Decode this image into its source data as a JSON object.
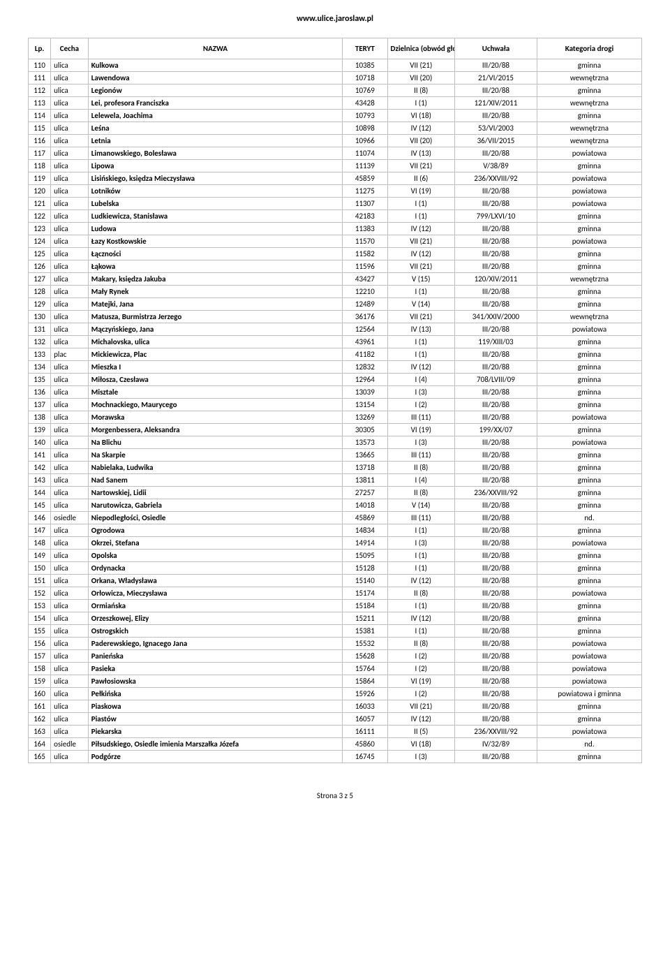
{
  "header_url": "www.ulice.jaroslaw.pl",
  "footer": "Strona 3 z 5",
  "columns": {
    "lp": "Lp.",
    "cecha": "Cecha",
    "nazwa": "NAZWA",
    "teryt": "TERYT",
    "dzielnica": "Dzielnica (obwód głosowania)",
    "uchwala": "Uchwała",
    "kategoria": "Kategoria drogi"
  },
  "rows": [
    {
      "lp": "110",
      "cecha": "ulica",
      "nazwa": "Kulkowa",
      "teryt": "10385",
      "dzielnica": "VII (21)",
      "uchwala": "III/20/88",
      "kategoria": "gminna"
    },
    {
      "lp": "111",
      "cecha": "ulica",
      "nazwa": "Lawendowa",
      "teryt": "10718",
      "dzielnica": "VII (20)",
      "uchwala": "21/VI/2015",
      "kategoria": "wewnętrzna"
    },
    {
      "lp": "112",
      "cecha": "ulica",
      "nazwa": "Legionów",
      "teryt": "10769",
      "dzielnica": "II (8)",
      "uchwala": "III/20/88",
      "kategoria": "gminna"
    },
    {
      "lp": "113",
      "cecha": "ulica",
      "nazwa": "Lei, profesora Franciszka",
      "teryt": "43428",
      "dzielnica": "I (1)",
      "uchwala": "121/XIV/2011",
      "kategoria": "wewnętrzna"
    },
    {
      "lp": "114",
      "cecha": "ulica",
      "nazwa": "Lelewela, Joachima",
      "teryt": "10793",
      "dzielnica": "VI (18)",
      "uchwala": "III/20/88",
      "kategoria": "gminna"
    },
    {
      "lp": "115",
      "cecha": "ulica",
      "nazwa": "Leśna",
      "teryt": "10898",
      "dzielnica": "IV (12)",
      "uchwala": "53/VI/2003",
      "kategoria": "wewnętrzna"
    },
    {
      "lp": "116",
      "cecha": "ulica",
      "nazwa": "Letnia",
      "teryt": "10966",
      "dzielnica": "VII (20)",
      "uchwala": "36/VII/2015",
      "kategoria": "wewnętrzna"
    },
    {
      "lp": "117",
      "cecha": "ulica",
      "nazwa": "Limanowskiego, Bolesława",
      "teryt": "11074",
      "dzielnica": "IV (13)",
      "uchwala": "III/20/88",
      "kategoria": "powiatowa"
    },
    {
      "lp": "118",
      "cecha": "ulica",
      "nazwa": "Lipowa",
      "teryt": "11139",
      "dzielnica": "VII (21)",
      "uchwala": "V/38/89",
      "kategoria": "gminna"
    },
    {
      "lp": "119",
      "cecha": "ulica",
      "nazwa": "Lisińskiego, księdza Mieczysława",
      "teryt": "45859",
      "dzielnica": "II (6)",
      "uchwala": "236/XXVIII/92",
      "kategoria": "powiatowa"
    },
    {
      "lp": "120",
      "cecha": "ulica",
      "nazwa": "Lotników",
      "teryt": "11275",
      "dzielnica": "VI (19)",
      "uchwala": "III/20/88",
      "kategoria": "powiatowa"
    },
    {
      "lp": "121",
      "cecha": "ulica",
      "nazwa": "Lubelska",
      "teryt": "11307",
      "dzielnica": "I (1)",
      "uchwala": "III/20/88",
      "kategoria": "powiatowa"
    },
    {
      "lp": "122",
      "cecha": "ulica",
      "nazwa": "Ludkiewicza, Stanisława",
      "teryt": "42183",
      "dzielnica": "I (1)",
      "uchwala": "799/LXVI/10",
      "kategoria": "gminna"
    },
    {
      "lp": "123",
      "cecha": "ulica",
      "nazwa": "Ludowa",
      "teryt": "11383",
      "dzielnica": "IV (12)",
      "uchwala": "III/20/88",
      "kategoria": "gminna"
    },
    {
      "lp": "124",
      "cecha": "ulica",
      "nazwa": "Łazy Kostkowskie",
      "teryt": "11570",
      "dzielnica": "VII (21)",
      "uchwala": "III/20/88",
      "kategoria": "powiatowa"
    },
    {
      "lp": "125",
      "cecha": "ulica",
      "nazwa": "Łączności",
      "teryt": "11582",
      "dzielnica": "IV (12)",
      "uchwala": "III/20/88",
      "kategoria": "gminna"
    },
    {
      "lp": "126",
      "cecha": "ulica",
      "nazwa": "Łąkowa",
      "teryt": "11596",
      "dzielnica": "VII (21)",
      "uchwala": "III/20/88",
      "kategoria": "gminna"
    },
    {
      "lp": "127",
      "cecha": "ulica",
      "nazwa": "Makary, księdza Jakuba",
      "teryt": "43427",
      "dzielnica": "V (15)",
      "uchwala": "120/XIV/2011",
      "kategoria": "wewnętrzna"
    },
    {
      "lp": "128",
      "cecha": "ulica",
      "nazwa": "Mały Rynek",
      "teryt": "12210",
      "dzielnica": "I (1)",
      "uchwala": "III/20/88",
      "kategoria": "gminna"
    },
    {
      "lp": "129",
      "cecha": "ulica",
      "nazwa": "Matejki, Jana",
      "teryt": "12489",
      "dzielnica": "V (14)",
      "uchwala": "III/20/88",
      "kategoria": "gminna"
    },
    {
      "lp": "130",
      "cecha": "ulica",
      "nazwa": "Matusza, Burmistrza Jerzego",
      "teryt": "36176",
      "dzielnica": "VII (21)",
      "uchwala": "341/XXIV/2000",
      "kategoria": "wewnętrzna"
    },
    {
      "lp": "131",
      "cecha": "ulica",
      "nazwa": "Mączyńskiego, Jana",
      "teryt": "12564",
      "dzielnica": "IV (13)",
      "uchwala": "III/20/88",
      "kategoria": "powiatowa"
    },
    {
      "lp": "132",
      "cecha": "ulica",
      "nazwa": "Michalovska, ulica",
      "teryt": "43961",
      "dzielnica": "I (1)",
      "uchwala": "119/XIII/03",
      "kategoria": "gminna"
    },
    {
      "lp": "133",
      "cecha": "plac",
      "nazwa": "Mickiewicza, Plac",
      "teryt": "41182",
      "dzielnica": "I (1)",
      "uchwala": "III/20/88",
      "kategoria": "gminna"
    },
    {
      "lp": "134",
      "cecha": "ulica",
      "nazwa": "Mieszka I",
      "teryt": "12832",
      "dzielnica": "IV (12)",
      "uchwala": "III/20/88",
      "kategoria": "gminna"
    },
    {
      "lp": "135",
      "cecha": "ulica",
      "nazwa": "Miłosza, Czesława",
      "teryt": "12964",
      "dzielnica": "I (4)",
      "uchwala": "708/LVIII/09",
      "kategoria": "gminna"
    },
    {
      "lp": "136",
      "cecha": "ulica",
      "nazwa": "Misztale",
      "teryt": "13039",
      "dzielnica": "I (3)",
      "uchwala": "III/20/88",
      "kategoria": "gminna"
    },
    {
      "lp": "137",
      "cecha": "ulica",
      "nazwa": "Mochnackiego, Maurycego",
      "teryt": "13154",
      "dzielnica": "I (2)",
      "uchwala": "III/20/88",
      "kategoria": "gminna"
    },
    {
      "lp": "138",
      "cecha": "ulica",
      "nazwa": "Morawska",
      "teryt": "13269",
      "dzielnica": "III (11)",
      "uchwala": "III/20/88",
      "kategoria": "powiatowa"
    },
    {
      "lp": "139",
      "cecha": "ulica",
      "nazwa": "Morgenbessera, Aleksandra",
      "teryt": "30305",
      "dzielnica": "VI (19)",
      "uchwala": "199/XX/07",
      "kategoria": "gminna"
    },
    {
      "lp": "140",
      "cecha": "ulica",
      "nazwa": "Na Blichu",
      "teryt": "13573",
      "dzielnica": "I (3)",
      "uchwala": "III/20/88",
      "kategoria": "powiatowa"
    },
    {
      "lp": "141",
      "cecha": "ulica",
      "nazwa": "Na Skarpie",
      "teryt": "13665",
      "dzielnica": "III (11)",
      "uchwala": "III/20/88",
      "kategoria": "gminna"
    },
    {
      "lp": "142",
      "cecha": "ulica",
      "nazwa": "Nabielaka, Ludwika",
      "teryt": "13718",
      "dzielnica": "II (8)",
      "uchwala": "III/20/88",
      "kategoria": "gminna"
    },
    {
      "lp": "143",
      "cecha": "ulica",
      "nazwa": "Nad Sanem",
      "teryt": "13811",
      "dzielnica": "I (4)",
      "uchwala": "III/20/88",
      "kategoria": "gminna"
    },
    {
      "lp": "144",
      "cecha": "ulica",
      "nazwa": "Nartowskiej, Lidii",
      "teryt": "27257",
      "dzielnica": "II (8)",
      "uchwala": "236/XXVIII/92",
      "kategoria": "gminna"
    },
    {
      "lp": "145",
      "cecha": "ulica",
      "nazwa": "Narutowicza, Gabriela",
      "teryt": "14018",
      "dzielnica": "V (14)",
      "uchwala": "III/20/88",
      "kategoria": "gminna"
    },
    {
      "lp": "146",
      "cecha": "osiedle",
      "nazwa": "Niepodległości, Osiedle",
      "teryt": "45869",
      "dzielnica": "III (11)",
      "uchwala": "III/20/88",
      "kategoria": "nd."
    },
    {
      "lp": "147",
      "cecha": "ulica",
      "nazwa": "Ogrodowa",
      "teryt": "14834",
      "dzielnica": "I (1)",
      "uchwala": "III/20/88",
      "kategoria": "gminna"
    },
    {
      "lp": "148",
      "cecha": "ulica",
      "nazwa": "Okrzei, Stefana",
      "teryt": "14914",
      "dzielnica": "I (3)",
      "uchwala": "III/20/88",
      "kategoria": "powiatowa"
    },
    {
      "lp": "149",
      "cecha": "ulica",
      "nazwa": "Opolska",
      "teryt": "15095",
      "dzielnica": "I (1)",
      "uchwala": "III/20/88",
      "kategoria": "gminna"
    },
    {
      "lp": "150",
      "cecha": "ulica",
      "nazwa": "Ordynacka",
      "teryt": "15128",
      "dzielnica": "I (1)",
      "uchwala": "III/20/88",
      "kategoria": "gminna"
    },
    {
      "lp": "151",
      "cecha": "ulica",
      "nazwa": "Orkana, Władysława",
      "teryt": "15140",
      "dzielnica": "IV (12)",
      "uchwala": "III/20/88",
      "kategoria": "gminna"
    },
    {
      "lp": "152",
      "cecha": "ulica",
      "nazwa": "Orłowicza, Mieczysława",
      "teryt": "15174",
      "dzielnica": "II (8)",
      "uchwala": "III/20/88",
      "kategoria": "powiatowa"
    },
    {
      "lp": "153",
      "cecha": "ulica",
      "nazwa": "Ormiańska",
      "teryt": "15184",
      "dzielnica": "I (1)",
      "uchwala": "III/20/88",
      "kategoria": "gminna"
    },
    {
      "lp": "154",
      "cecha": "ulica",
      "nazwa": "Orzeszkowej, Elizy",
      "teryt": "15211",
      "dzielnica": "IV (12)",
      "uchwala": "III/20/88",
      "kategoria": "gminna"
    },
    {
      "lp": "155",
      "cecha": "ulica",
      "nazwa": "Ostrogskich",
      "teryt": "15381",
      "dzielnica": "I (1)",
      "uchwala": "III/20/88",
      "kategoria": "gminna"
    },
    {
      "lp": "156",
      "cecha": "ulica",
      "nazwa": "Paderewskiego, Ignacego Jana",
      "teryt": "15532",
      "dzielnica": "II (8)",
      "uchwala": "III/20/88",
      "kategoria": "powiatowa"
    },
    {
      "lp": "157",
      "cecha": "ulica",
      "nazwa": "Panieńska",
      "teryt": "15628",
      "dzielnica": "I (2)",
      "uchwala": "III/20/88",
      "kategoria": "powiatowa"
    },
    {
      "lp": "158",
      "cecha": "ulica",
      "nazwa": "Pasieka",
      "teryt": "15764",
      "dzielnica": "I (2)",
      "uchwala": "III/20/88",
      "kategoria": "powiatowa"
    },
    {
      "lp": "159",
      "cecha": "ulica",
      "nazwa": "Pawłosiowska",
      "teryt": "15864",
      "dzielnica": "VI (19)",
      "uchwala": "III/20/88",
      "kategoria": "powiatowa"
    },
    {
      "lp": "160",
      "cecha": "ulica",
      "nazwa": "Pełkińska",
      "teryt": "15926",
      "dzielnica": "I (2)",
      "uchwala": "III/20/88",
      "kategoria": "powiatowa i gminna"
    },
    {
      "lp": "161",
      "cecha": "ulica",
      "nazwa": "Piaskowa",
      "teryt": "16033",
      "dzielnica": "VII (21)",
      "uchwala": "III/20/88",
      "kategoria": "gminna"
    },
    {
      "lp": "162",
      "cecha": "ulica",
      "nazwa": "Piastów",
      "teryt": "16057",
      "dzielnica": "IV (12)",
      "uchwala": "III/20/88",
      "kategoria": "gminna"
    },
    {
      "lp": "163",
      "cecha": "ulica",
      "nazwa": "Piekarska",
      "teryt": "16111",
      "dzielnica": "II (5)",
      "uchwala": "236/XXVIII/92",
      "kategoria": "powiatowa"
    },
    {
      "lp": "164",
      "cecha": "osiedle",
      "nazwa": "Piłsudskiego, Osiedle imienia Marszałka Józefa",
      "teryt": "45860",
      "dzielnica": "VI (18)",
      "uchwala": "IV/32/89",
      "kategoria": "nd."
    },
    {
      "lp": "165",
      "cecha": "ulica",
      "nazwa": "Podgórze",
      "teryt": "16745",
      "dzielnica": "I (3)",
      "uchwala": "III/20/88",
      "kategoria": "gminna"
    }
  ],
  "style": {
    "border_color": "#bfbfbf",
    "text_color": "#000000",
    "background_color": "#ffffff",
    "font_family": "Calibri, Arial, sans-serif",
    "body_fontsize": 12,
    "cell_fontsize": 11,
    "col_widths": {
      "lp": 30,
      "cecha": 50,
      "nazwa": 340,
      "teryt": 60,
      "dzielnica": 90,
      "uchwala": 110,
      "kategoria": 140
    }
  }
}
